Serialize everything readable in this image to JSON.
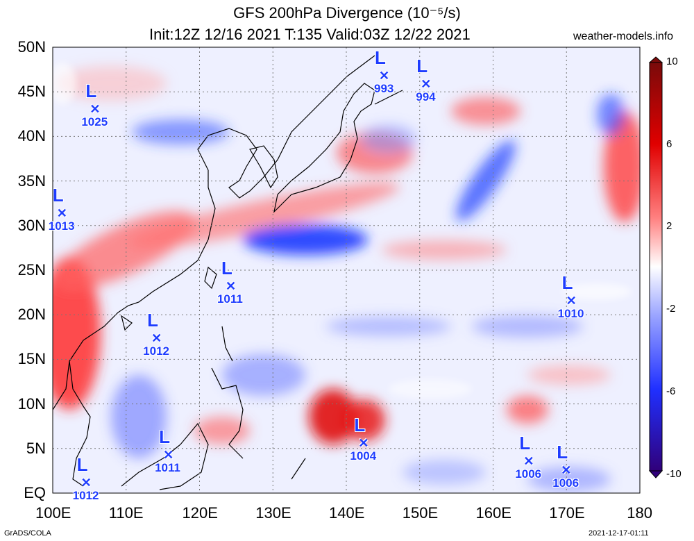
{
  "title": "GFS 200hPa Divergence (10⁻⁵/s)",
  "subtitle": "Init:12Z 12/16 2021 T:135 Valid:03Z 12/22 2021",
  "site": "weather-models.info",
  "footer_left": "GrADS/COLA",
  "footer_right": "2021-12-17-01:11",
  "lat_labels": [
    "50N",
    "45N",
    "40N",
    "35N",
    "30N",
    "25N",
    "20N",
    "15N",
    "10N",
    "5N",
    "EQ"
  ],
  "lon_labels": [
    "100E",
    "110E",
    "120E",
    "130E",
    "140E",
    "150E",
    "160E",
    "170E",
    "180"
  ],
  "colorbar": {
    "labels": [
      "10",
      "6",
      "2",
      "-2",
      "-6",
      "-10"
    ],
    "colors": [
      "#7a0a0a",
      "#d00000",
      "#ff3030",
      "#ffa0a0",
      "#ffffff",
      "#a0a8ff",
      "#2040ff",
      "#1a0090",
      "#3a0070"
    ]
  },
  "lows": [
    {
      "mark": "L",
      "pressure": "993",
      "lon": 145.2,
      "lat": 46.7
    },
    {
      "mark": "L",
      "pressure": "994",
      "lon": 150.9,
      "lat": 45.8
    },
    {
      "mark": "L",
      "pressure": "1025",
      "lon": 105.8,
      "lat": 43.0
    },
    {
      "mark": "L",
      "pressure": "1013",
      "lon": 101.3,
      "lat": 31.3
    },
    {
      "mark": "L",
      "pressure": "1011",
      "lon": 124.3,
      "lat": 23.1
    },
    {
      "mark": "L",
      "pressure": "1010",
      "lon": 170.7,
      "lat": 21.5
    },
    {
      "mark": "L",
      "pressure": "1012",
      "lon": 114.2,
      "lat": 17.3
    },
    {
      "mark": "L",
      "pressure": "1004",
      "lon": 142.4,
      "lat": 5.5
    },
    {
      "mark": "L",
      "pressure": "1011",
      "lon": 115.8,
      "lat": 4.2
    },
    {
      "mark": "L",
      "pressure": "1006",
      "lon": 164.9,
      "lat": 3.5
    },
    {
      "mark": "L",
      "pressure": "1006",
      "lon": 170.0,
      "lat": 2.5
    },
    {
      "mark": "L",
      "pressure": "1012",
      "lon": 104.6,
      "lat": 1.1
    }
  ]
}
